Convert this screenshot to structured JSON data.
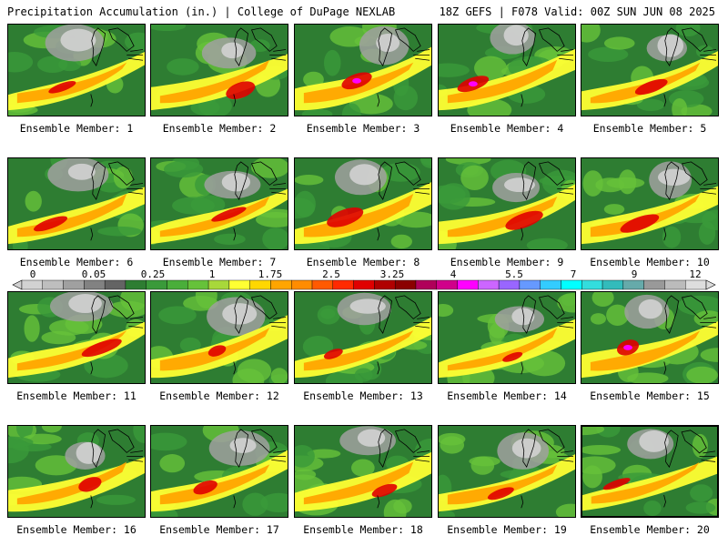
{
  "header": {
    "title_left": "Precipitation Accumulation (in.) | College of DuPage NEXLAB",
    "title_right": "18Z GEFS | F078 Valid: 00Z SUN JUN 08 2025"
  },
  "colorbar": {
    "tick_labels": [
      "0",
      "0.05",
      "0.25",
      "1",
      "1.75",
      "2.5",
      "3.25",
      "4",
      "5.5",
      "7",
      "9",
      "12"
    ],
    "colors": [
      "#d2d2d2",
      "#bebebe",
      "#a0a0a0",
      "#828282",
      "#646464",
      "#2e7d32",
      "#3a9a3a",
      "#4aae3a",
      "#66c23a",
      "#a8d83a",
      "#ffff33",
      "#ffd700",
      "#ffa500",
      "#ff8c00",
      "#ff5a00",
      "#ff2a00",
      "#e00000",
      "#b00000",
      "#8b0000",
      "#b0005a",
      "#d0008a",
      "#ff00ff",
      "#cc66ff",
      "#9966ff",
      "#6699ff",
      "#33ccff",
      "#00ffff",
      "#33dddd",
      "#33bbbb",
      "#66aaaa",
      "#999999",
      "#bbbbbb",
      "#dddddd"
    ]
  },
  "panels": [
    {
      "label": "Ensemble Member: 1"
    },
    {
      "label": "Ensemble Member: 2"
    },
    {
      "label": "Ensemble Member: 3"
    },
    {
      "label": "Ensemble Member: 4"
    },
    {
      "label": "Ensemble Member: 5"
    },
    {
      "label": "Ensemble Member: 6"
    },
    {
      "label": "Ensemble Member: 7"
    },
    {
      "label": "Ensemble Member: 8"
    },
    {
      "label": "Ensemble Member: 9"
    },
    {
      "label": "Ensemble Member: 10"
    },
    {
      "label": "Ensemble Member: 11"
    },
    {
      "label": "Ensemble Member: 12"
    },
    {
      "label": "Ensemble Member: 13"
    },
    {
      "label": "Ensemble Member: 14"
    },
    {
      "label": "Ensemble Member: 15"
    },
    {
      "label": "Ensemble Member: 16"
    },
    {
      "label": "Ensemble Member: 17"
    },
    {
      "label": "Ensemble Member: 18"
    },
    {
      "label": "Ensemble Member: 19"
    },
    {
      "label": "Ensemble Member: 20"
    }
  ],
  "colors": {
    "green_dark": "#2e7d32",
    "green": "#3a9a3a",
    "green_light": "#66c23a",
    "yellow": "#ffff33",
    "orange": "#ffa500",
    "red": "#e00000",
    "magenta": "#ff00ff",
    "gray_light": "#d2d2d2",
    "gray": "#a0a0a0"
  }
}
